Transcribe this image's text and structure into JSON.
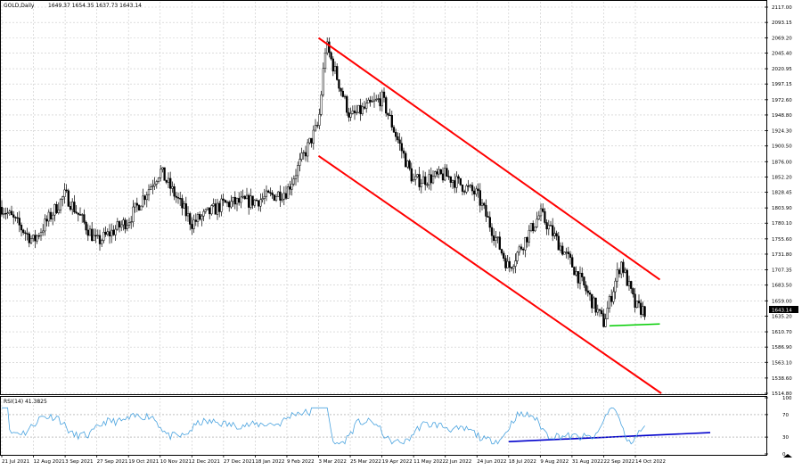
{
  "header": {
    "symbol": "GOLD,Daily",
    "ohlc": "1649.37 1654.35 1637.73 1643.14"
  },
  "price_scale": {
    "ticks": [
      "2117.00",
      "2093.15",
      "2069.20",
      "2045.40",
      "2020.95",
      "1997.15",
      "1972.60",
      "1948.80",
      "1924.30",
      "1900.50",
      "1876.00",
      "1852.20",
      "1828.45",
      "1803.90",
      "1780.10",
      "1755.60",
      "1731.80",
      "1707.35",
      "1683.50",
      "1659.00",
      "1635.20",
      "1610.70",
      "1586.90",
      "1563.10",
      "1538.60",
      "1514.80"
    ],
    "current_price_label": "1643.14"
  },
  "rsi_panel": {
    "label": "RSI(14) 41.3825",
    "ticks": [
      "100",
      "70",
      "30",
      "0"
    ]
  },
  "time_axis": {
    "labels": [
      "21 Jul 2021",
      "12 Aug 2021",
      "3 Sep 2021",
      "27 Sep 2021",
      "19 Oct 2021",
      "10 Nov 2021",
      "2 Dec 2021",
      "27 Dec 2021",
      "18 Jan 2022",
      "9 Feb 2022",
      "3 Mar 2022",
      "25 Mar 2022",
      "19 Apr 2022",
      "11 May 2022",
      "2 Jun 2022",
      "24 Jun 2022",
      "18 Jul 2022",
      "9 Aug 2022",
      "31 Aug 2022",
      "22 Sep 2022",
      "14 Oct 2022"
    ]
  },
  "colors": {
    "bull": "#ffffff",
    "bear": "#000000",
    "channel": "#ff0000",
    "support": "#00cc00",
    "rsi_line": "#4aa3df",
    "rsi_trend": "#0000cc",
    "price_tag_bg": "#000000"
  },
  "chart_data": {
    "type": "candlestick",
    "title": "GOLD,Daily",
    "series": [
      {
        "name": "GOLD,Daily",
        "close_anchors": [
          [
            "21 Jul 2021",
            1805
          ],
          [
            "12 Aug 2021",
            1752
          ],
          [
            "3 Sep 2021",
            1825
          ],
          [
            "27 Sep 2021",
            1750
          ],
          [
            "19 Oct 2021",
            1785
          ],
          [
            "10 Nov 2021",
            1862
          ],
          [
            "2 Dec 2021",
            1780
          ],
          [
            "27 Dec 2021",
            1810
          ],
          [
            "18 Jan 2022",
            1815
          ],
          [
            "9 Feb 2022",
            1830
          ],
          [
            "3 Mar 2022",
            1935
          ],
          [
            "8 Mar 2022",
            2060
          ],
          [
            "25 Mar 2022",
            1945
          ],
          [
            "19 Apr 2022",
            1975
          ],
          [
            "11 May 2022",
            1845
          ],
          [
            "2 Jun 2022",
            1855
          ],
          [
            "24 Jun 2022",
            1825
          ],
          [
            "18 Jul 2022",
            1710
          ],
          [
            "9 Aug 2022",
            1795
          ],
          [
            "31 Aug 2022",
            1715
          ],
          [
            "22 Sep 2022",
            1625
          ],
          [
            "4 Oct 2022",
            1720
          ],
          [
            "14 Oct 2022",
            1650
          ],
          [
            "21 Oct 2022",
            1643
          ]
        ]
      }
    ],
    "ylim": [
      1514.8,
      2117.0
    ],
    "rsi": {
      "period": 14,
      "last": 41.3825,
      "ylim": [
        0,
        100
      ],
      "levels": [
        70,
        30
      ]
    },
    "annotations": [
      {
        "type": "channel-upper",
        "from": [
          "3 Mar 2022",
          2069
        ],
        "to": [
          "31 Oct 2022",
          1692
        ]
      },
      {
        "type": "channel-lower",
        "from": [
          "3 Mar 2022",
          1885
        ],
        "to": [
          "1 Nov 2022",
          1514.8
        ]
      },
      {
        "type": "support",
        "from": [
          "26 Sep 2022",
          1620
        ],
        "to": [
          "31 Oct 2022",
          1623
        ]
      },
      {
        "type": "rsi-trendline",
        "from": [
          "18 Jul 2022",
          22
        ],
        "to": [
          "5 Dec 2022",
          38
        ]
      }
    ],
    "grid": true,
    "legend": "none"
  }
}
